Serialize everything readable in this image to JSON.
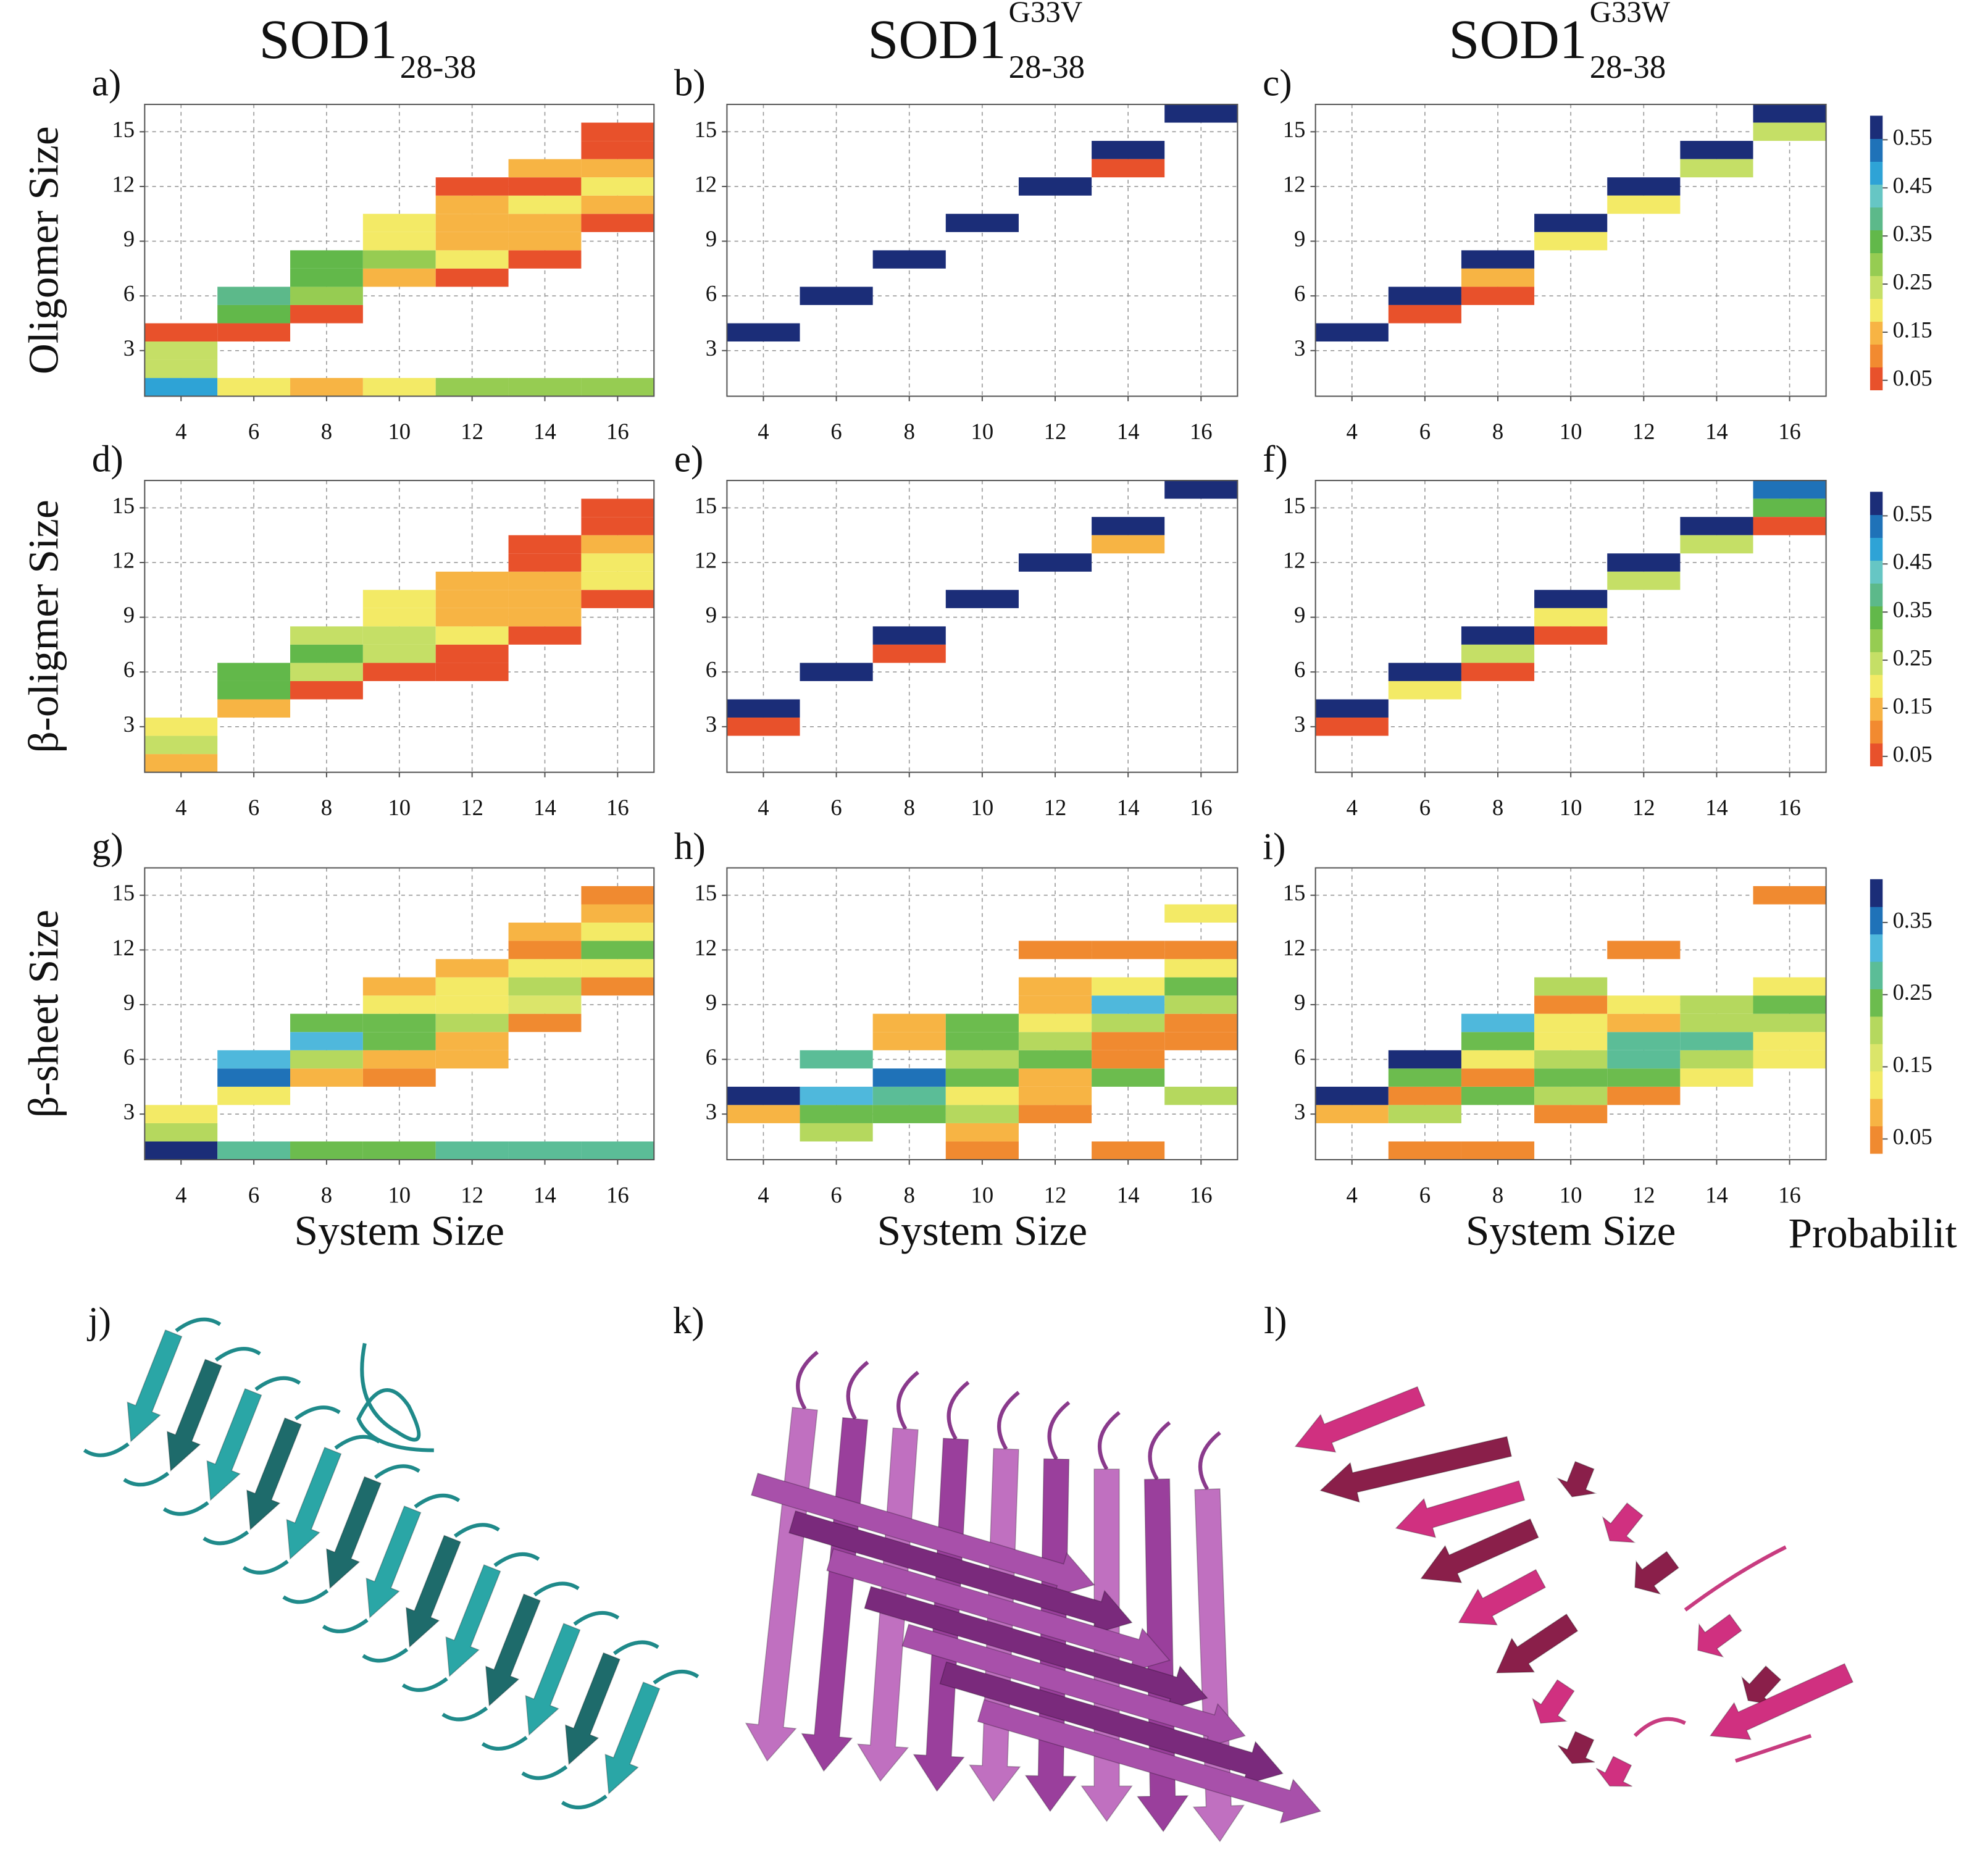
{
  "column_titles": [
    {
      "text": "SOD1",
      "subscript": "28-38"
    },
    {
      "text": "SOD1",
      "superscript": "G33V",
      "subscript": "28-38"
    },
    {
      "text": "SOD1",
      "superscript": "G33W",
      "subscript": "28-38"
    }
  ],
  "structures": [
    {
      "label": "j)"
    },
    {
      "label": "k)"
    },
    {
      "label": "l)"
    }
  ],
  "chart_data": [
    {
      "type": "heatmap",
      "label": "a)",
      "ylabel": "Oligomer Size",
      "xlim": [
        3,
        17
      ],
      "ylim": [
        0.5,
        16.5
      ],
      "xticks": [
        4,
        6,
        8,
        10,
        12,
        14,
        16
      ],
      "yticks": [
        3,
        6,
        9,
        12,
        15
      ],
      "grid": true,
      "clim": [
        0.03,
        0.6
      ],
      "colors": [
        "#e8512b",
        "#f28a30",
        "#f7b444",
        "#f3ea66",
        "#c5df66",
        "#96cc52",
        "#62b84a",
        "#5cb98a",
        "#66c6c4",
        "#2ea3d6",
        "#1f72b8",
        "#1b2d78"
      ],
      "x": [
        4,
        4,
        4,
        4,
        6,
        6,
        6,
        6,
        8,
        8,
        8,
        8,
        8,
        10,
        10,
        10,
        10,
        10,
        12,
        12,
        12,
        12,
        12,
        12,
        12,
        14,
        14,
        14,
        14,
        14,
        14,
        14,
        16,
        16,
        16,
        16,
        16,
        16,
        16
      ],
      "y": [
        1,
        2,
        3,
        4,
        1,
        4,
        5,
        6,
        1,
        5,
        6,
        7,
        8,
        1,
        7,
        8,
        9,
        10,
        1,
        7,
        8,
        9,
        10,
        11,
        12,
        1,
        8,
        9,
        10,
        11,
        12,
        13,
        1,
        10,
        11,
        12,
        13,
        14,
        15
      ],
      "values": [
        0.48,
        0.25,
        0.25,
        0.05,
        0.2,
        0.05,
        0.35,
        0.4,
        0.15,
        0.05,
        0.3,
        0.35,
        0.35,
        0.2,
        0.15,
        0.3,
        0.2,
        0.2,
        0.3,
        0.05,
        0.2,
        0.15,
        0.15,
        0.15,
        0.05,
        0.3,
        0.05,
        0.15,
        0.15,
        0.2,
        0.05,
        0.15,
        0.3,
        0.05,
        0.15,
        0.2,
        0.15,
        0.05,
        0.05
      ]
    },
    {
      "type": "heatmap",
      "label": "b)",
      "xlim": [
        3,
        17
      ],
      "ylim": [
        0.5,
        16.5
      ],
      "xticks": [
        4,
        6,
        8,
        10,
        12,
        14,
        16
      ],
      "yticks": [
        3,
        6,
        9,
        12,
        15
      ],
      "grid": true,
      "clim": [
        0.03,
        0.6
      ],
      "colors": [
        "#e8512b",
        "#f28a30",
        "#f7b444",
        "#f3ea66",
        "#c5df66",
        "#96cc52",
        "#62b84a",
        "#5cb98a",
        "#66c6c4",
        "#2ea3d6",
        "#1f72b8",
        "#1b2d78"
      ],
      "x": [
        4,
        6,
        8,
        10,
        12,
        14,
        14,
        16
      ],
      "y": [
        4,
        6,
        8,
        10,
        12,
        14,
        13,
        16
      ],
      "values": [
        0.58,
        0.58,
        0.58,
        0.58,
        0.58,
        0.58,
        0.05,
        0.58
      ]
    },
    {
      "type": "heatmap",
      "label": "c)",
      "xlim": [
        3,
        17
      ],
      "ylim": [
        0.5,
        16.5
      ],
      "xticks": [
        4,
        6,
        8,
        10,
        12,
        14,
        16
      ],
      "yticks": [
        3,
        6,
        9,
        12,
        15
      ],
      "grid": true,
      "clim": [
        0.03,
        0.6
      ],
      "colors": [
        "#e8512b",
        "#f28a30",
        "#f7b444",
        "#f3ea66",
        "#c5df66",
        "#96cc52",
        "#62b84a",
        "#5cb98a",
        "#66c6c4",
        "#2ea3d6",
        "#1f72b8",
        "#1b2d78"
      ],
      "colorbar_ticks": [
        0.05,
        0.15,
        0.25,
        0.35,
        0.45,
        0.55
      ],
      "x": [
        4,
        6,
        6,
        8,
        8,
        8,
        10,
        10,
        12,
        12,
        14,
        14,
        16,
        16
      ],
      "y": [
        4,
        6,
        5,
        8,
        7,
        6,
        10,
        9,
        12,
        11,
        14,
        13,
        16,
        15
      ],
      "values": [
        0.58,
        0.58,
        0.05,
        0.58,
        0.15,
        0.05,
        0.58,
        0.2,
        0.58,
        0.2,
        0.58,
        0.25,
        0.58,
        0.25
      ]
    },
    {
      "type": "heatmap",
      "label": "d)",
      "ylabel": "β-oligmer Size",
      "xlim": [
        3,
        17
      ],
      "ylim": [
        0.5,
        16.5
      ],
      "xticks": [
        4,
        6,
        8,
        10,
        12,
        14,
        16
      ],
      "yticks": [
        3,
        6,
        9,
        12,
        15
      ],
      "grid": true,
      "clim": [
        0.03,
        0.6
      ],
      "colors": [
        "#e8512b",
        "#f28a30",
        "#f7b444",
        "#f3ea66",
        "#c5df66",
        "#96cc52",
        "#62b84a",
        "#5cb98a",
        "#66c6c4",
        "#2ea3d6",
        "#1f72b8",
        "#1b2d78"
      ],
      "x": [
        4,
        4,
        4,
        6,
        6,
        6,
        8,
        8,
        8,
        8,
        10,
        10,
        10,
        10,
        10,
        12,
        12,
        12,
        12,
        12,
        12,
        14,
        14,
        14,
        14,
        14,
        14,
        16,
        16,
        16,
        16,
        16,
        16
      ],
      "y": [
        1,
        2,
        3,
        4,
        5,
        6,
        5,
        6,
        7,
        8,
        6,
        7,
        8,
        9,
        10,
        6,
        7,
        8,
        9,
        10,
        11,
        8,
        9,
        10,
        11,
        12,
        13,
        10,
        11,
        12,
        13,
        14,
        15
      ],
      "values": [
        0.15,
        0.25,
        0.2,
        0.15,
        0.35,
        0.35,
        0.05,
        0.25,
        0.35,
        0.25,
        0.05,
        0.25,
        0.25,
        0.2,
        0.2,
        0.05,
        0.05,
        0.2,
        0.15,
        0.15,
        0.15,
        0.05,
        0.15,
        0.15,
        0.15,
        0.05,
        0.05,
        0.05,
        0.2,
        0.2,
        0.15,
        0.05,
        0.05
      ]
    },
    {
      "type": "heatmap",
      "label": "e)",
      "xlim": [
        3,
        17
      ],
      "ylim": [
        0.5,
        16.5
      ],
      "xticks": [
        4,
        6,
        8,
        10,
        12,
        14,
        16
      ],
      "yticks": [
        3,
        6,
        9,
        12,
        15
      ],
      "grid": true,
      "clim": [
        0.03,
        0.6
      ],
      "colors": [
        "#e8512b",
        "#f28a30",
        "#f7b444",
        "#f3ea66",
        "#c5df66",
        "#96cc52",
        "#62b84a",
        "#5cb98a",
        "#66c6c4",
        "#2ea3d6",
        "#1f72b8",
        "#1b2d78"
      ],
      "x": [
        4,
        4,
        6,
        8,
        8,
        10,
        12,
        14,
        14,
        16
      ],
      "y": [
        4,
        3,
        6,
        8,
        7,
        10,
        12,
        14,
        13,
        16
      ],
      "values": [
        0.58,
        0.05,
        0.58,
        0.58,
        0.05,
        0.58,
        0.58,
        0.58,
        0.15,
        0.58
      ]
    },
    {
      "type": "heatmap",
      "label": "f)",
      "xlim": [
        3,
        17
      ],
      "ylim": [
        0.5,
        16.5
      ],
      "xticks": [
        4,
        6,
        8,
        10,
        12,
        14,
        16
      ],
      "yticks": [
        3,
        6,
        9,
        12,
        15
      ],
      "grid": true,
      "clim": [
        0.03,
        0.6
      ],
      "colors": [
        "#e8512b",
        "#f28a30",
        "#f7b444",
        "#f3ea66",
        "#c5df66",
        "#96cc52",
        "#62b84a",
        "#5cb98a",
        "#66c6c4",
        "#2ea3d6",
        "#1f72b8",
        "#1b2d78"
      ],
      "colorbar_ticks": [
        0.05,
        0.15,
        0.25,
        0.35,
        0.45,
        0.55
      ],
      "x": [
        4,
        4,
        6,
        6,
        8,
        8,
        8,
        10,
        10,
        10,
        12,
        12,
        14,
        14,
        16,
        16,
        16
      ],
      "y": [
        4,
        3,
        6,
        5,
        8,
        7,
        6,
        10,
        9,
        8,
        12,
        11,
        14,
        13,
        16,
        15,
        14
      ],
      "values": [
        0.58,
        0.05,
        0.58,
        0.2,
        0.58,
        0.25,
        0.05,
        0.58,
        0.2,
        0.05,
        0.58,
        0.25,
        0.58,
        0.25,
        0.53,
        0.35,
        0.05
      ]
    },
    {
      "type": "heatmap",
      "label": "g)",
      "ylabel": "β-sheet Size",
      "xlabel": "System Size",
      "xlim": [
        3,
        17
      ],
      "ylim": [
        0.5,
        16.5
      ],
      "xticks": [
        4,
        6,
        8,
        10,
        12,
        14,
        16
      ],
      "yticks": [
        3,
        6,
        9,
        12,
        15
      ],
      "grid": true,
      "clim": [
        0.03,
        0.41
      ],
      "colors": [
        "#f08a30",
        "#f7b444",
        "#f3ea66",
        "#dbe56a",
        "#b5d85e",
        "#6cbc4e",
        "#5bbd97",
        "#4fb8dc",
        "#1f72b8",
        "#1b2d78"
      ],
      "x": [
        4,
        4,
        4,
        6,
        6,
        6,
        6,
        8,
        8,
        8,
        8,
        8,
        10,
        10,
        10,
        10,
        10,
        10,
        10,
        12,
        12,
        12,
        12,
        12,
        12,
        12,
        14,
        14,
        14,
        14,
        14,
        14,
        14,
        16,
        16,
        16,
        16,
        16,
        16,
        16
      ],
      "y": [
        1,
        2,
        3,
        1,
        4,
        5,
        6,
        1,
        5,
        6,
        7,
        8,
        1,
        5,
        6,
        7,
        8,
        9,
        10,
        1,
        6,
        7,
        8,
        9,
        10,
        11,
        1,
        8,
        9,
        10,
        11,
        12,
        13,
        1,
        10,
        11,
        12,
        13,
        14,
        15
      ],
      "values": [
        0.39,
        0.2,
        0.13,
        0.27,
        0.13,
        0.35,
        0.31,
        0.24,
        0.09,
        0.2,
        0.31,
        0.24,
        0.24,
        0.05,
        0.09,
        0.24,
        0.24,
        0.13,
        0.09,
        0.27,
        0.09,
        0.09,
        0.2,
        0.13,
        0.13,
        0.09,
        0.27,
        0.05,
        0.16,
        0.2,
        0.13,
        0.05,
        0.09,
        0.27,
        0.05,
        0.13,
        0.24,
        0.13,
        0.09,
        0.05
      ]
    },
    {
      "type": "heatmap",
      "label": "h)",
      "xlabel": "System Size",
      "xlim": [
        3,
        17
      ],
      "ylim": [
        0.5,
        16.5
      ],
      "xticks": [
        4,
        6,
        8,
        10,
        12,
        14,
        16
      ],
      "yticks": [
        3,
        6,
        9,
        12,
        15
      ],
      "grid": true,
      "clim": [
        0.03,
        0.41
      ],
      "colors": [
        "#f08a30",
        "#f7b444",
        "#f3ea66",
        "#dbe56a",
        "#b5d85e",
        "#6cbc4e",
        "#5bbd97",
        "#4fb8dc",
        "#1f72b8",
        "#1b2d78"
      ],
      "x": [
        4,
        4,
        6,
        6,
        6,
        6,
        8,
        8,
        8,
        8,
        8,
        10,
        10,
        10,
        10,
        10,
        10,
        10,
        10,
        12,
        12,
        12,
        12,
        12,
        12,
        12,
        12,
        12,
        14,
        14,
        14,
        14,
        14,
        14,
        14,
        14,
        16,
        16,
        16,
        16,
        16,
        16,
        16,
        16
      ],
      "y": [
        3,
        4,
        2,
        3,
        4,
        6,
        3,
        4,
        5,
        7,
        8,
        1,
        2,
        3,
        4,
        5,
        6,
        7,
        8,
        3,
        4,
        5,
        6,
        7,
        8,
        9,
        10,
        12,
        1,
        5,
        6,
        7,
        8,
        9,
        10,
        12,
        4,
        7,
        8,
        9,
        10,
        11,
        12,
        14
      ],
      "values": [
        0.09,
        0.39,
        0.2,
        0.24,
        0.31,
        0.27,
        0.24,
        0.27,
        0.35,
        0.09,
        0.09,
        0.05,
        0.09,
        0.2,
        0.13,
        0.24,
        0.2,
        0.24,
        0.24,
        0.05,
        0.09,
        0.09,
        0.24,
        0.2,
        0.13,
        0.09,
        0.09,
        0.05,
        0.05,
        0.24,
        0.05,
        0.05,
        0.2,
        0.31,
        0.13,
        0.05,
        0.2,
        0.05,
        0.05,
        0.2,
        0.24,
        0.13,
        0.05,
        0.13
      ]
    },
    {
      "type": "heatmap",
      "label": "i)",
      "xlabel": "System Size",
      "xlim": [
        3,
        17
      ],
      "ylim": [
        0.5,
        16.5
      ],
      "xticks": [
        4,
        6,
        8,
        10,
        12,
        14,
        16
      ],
      "yticks": [
        3,
        6,
        9,
        12,
        15
      ],
      "grid": true,
      "clim": [
        0.03,
        0.41
      ],
      "colors": [
        "#f08a30",
        "#f7b444",
        "#f3ea66",
        "#dbe56a",
        "#b5d85e",
        "#6cbc4e",
        "#5bbd97",
        "#4fb8dc",
        "#1f72b8",
        "#1b2d78"
      ],
      "colorbar_ticks": [
        0.05,
        0.15,
        0.25,
        0.35
      ],
      "colorbar_label": "Probabilit",
      "x": [
        4,
        4,
        6,
        6,
        6,
        6,
        6,
        8,
        8,
        8,
        8,
        8,
        8,
        10,
        10,
        10,
        10,
        10,
        10,
        10,
        10,
        12,
        12,
        12,
        12,
        12,
        12,
        12,
        14,
        14,
        14,
        14,
        14,
        16,
        16,
        16,
        16,
        16,
        16
      ],
      "y": [
        3,
        4,
        1,
        3,
        4,
        5,
        6,
        1,
        4,
        5,
        6,
        7,
        8,
        3,
        4,
        5,
        6,
        7,
        8,
        9,
        10,
        4,
        5,
        6,
        7,
        8,
        9,
        12,
        5,
        6,
        7,
        8,
        9,
        6,
        7,
        8,
        9,
        10,
        15
      ],
      "values": [
        0.09,
        0.39,
        0.05,
        0.2,
        0.05,
        0.24,
        0.39,
        0.05,
        0.24,
        0.05,
        0.13,
        0.24,
        0.31,
        0.05,
        0.2,
        0.24,
        0.2,
        0.13,
        0.13,
        0.05,
        0.2,
        0.05,
        0.24,
        0.27,
        0.27,
        0.09,
        0.13,
        0.05,
        0.13,
        0.2,
        0.27,
        0.2,
        0.2,
        0.13,
        0.13,
        0.2,
        0.24,
        0.13,
        0.05
      ]
    }
  ]
}
